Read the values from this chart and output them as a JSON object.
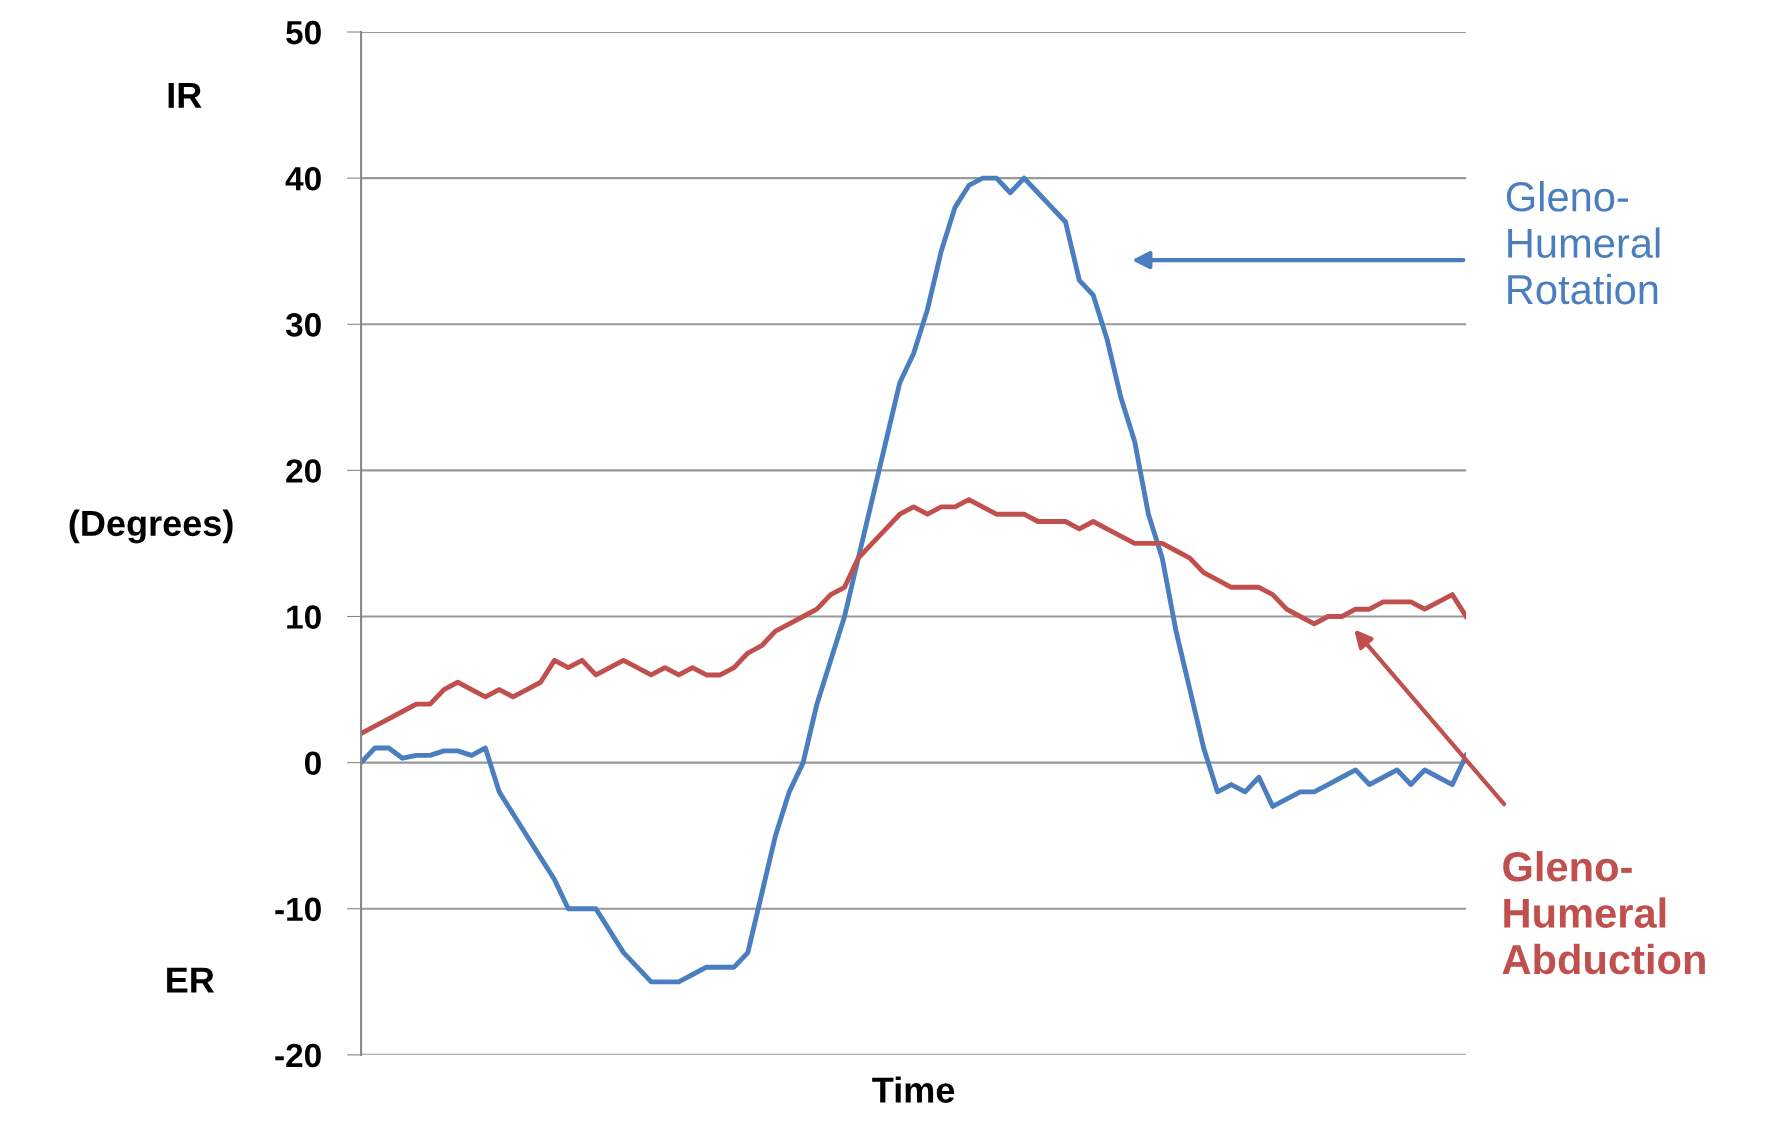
{
  "chart_data": {
    "type": "line",
    "xlabel": "Time",
    "ylabel": "(Degrees)",
    "annotations": [
      "IR",
      "ER"
    ],
    "categories": [
      null,
      null,
      null,
      null,
      null,
      null,
      null,
      null,
      null,
      null,
      null,
      null,
      null,
      null,
      null,
      null,
      null,
      null,
      null,
      null,
      null,
      null,
      null,
      null,
      null,
      null,
      null,
      null,
      null,
      null,
      null,
      null,
      null,
      null,
      null,
      null,
      null,
      null,
      null,
      null,
      null,
      null,
      null,
      null,
      null,
      null,
      null,
      null,
      null,
      null,
      null,
      null,
      null,
      null,
      null,
      null,
      null,
      null,
      null,
      null,
      null,
      null,
      null,
      null,
      null,
      null,
      null,
      null,
      null,
      null,
      null,
      null,
      null,
      null,
      null,
      null,
      null,
      null,
      null,
      null,
      null
    ],
    "series": [
      {
        "name": "Gleno-\nHumeral\nRotation",
        "color": "#4a7ebf",
        "values": [
          0,
          1,
          1,
          0.3,
          0.5,
          0.5,
          0.8,
          0.8,
          0.5,
          1,
          -2,
          -3.5,
          -5,
          -6.5,
          -8,
          -10,
          -10,
          -10,
          -11.5,
          -13,
          -14,
          -15,
          -15,
          -15,
          -14.5,
          -14,
          -14,
          -14,
          -13,
          -9,
          -5,
          -2,
          0,
          4,
          7,
          10,
          14,
          18,
          22,
          26,
          28,
          31,
          35,
          38,
          39.5,
          40,
          40,
          39,
          40,
          39,
          38,
          37,
          33,
          32,
          29,
          25,
          22,
          17,
          14,
          9,
          5,
          1,
          -2,
          -1.5,
          -2,
          -1,
          -3,
          -2.5,
          -2,
          -2,
          -1.5,
          -1,
          -0.5,
          -1.5,
          -1,
          -0.5,
          -1.5,
          -0.5,
          -1,
          -1.5,
          0.5
        ]
      },
      {
        "name": "Gleno-\nHumeral\nAbduction",
        "color": "#c0504d",
        "values": [
          2,
          2.5,
          3,
          3.5,
          4,
          4,
          5,
          5.5,
          5,
          4.5,
          5,
          4.5,
          5,
          5.5,
          7,
          6.5,
          7,
          6,
          6.5,
          7,
          6.5,
          6,
          6.5,
          6,
          6.5,
          6,
          6,
          6.5,
          7.5,
          8,
          9,
          9.5,
          10,
          10.5,
          11.5,
          12,
          14,
          15,
          16,
          17,
          17.5,
          17,
          17.5,
          17.5,
          18,
          17.5,
          17,
          17,
          17,
          16.5,
          16.5,
          16.5,
          16,
          16.5,
          16,
          15.5,
          15,
          15,
          15,
          14.5,
          14,
          13,
          12.5,
          12,
          12,
          12,
          11.5,
          10.5,
          10,
          9.5,
          10,
          10,
          10.5,
          10.5,
          11,
          11,
          11,
          10.5,
          11,
          11.5,
          10
        ]
      }
    ],
    "ylim": [
      -20,
      50
    ],
    "yticks": [
      -20,
      -10,
      0,
      10,
      20,
      30,
      40,
      50
    ],
    "grid": "y",
    "legend": false
  }
}
